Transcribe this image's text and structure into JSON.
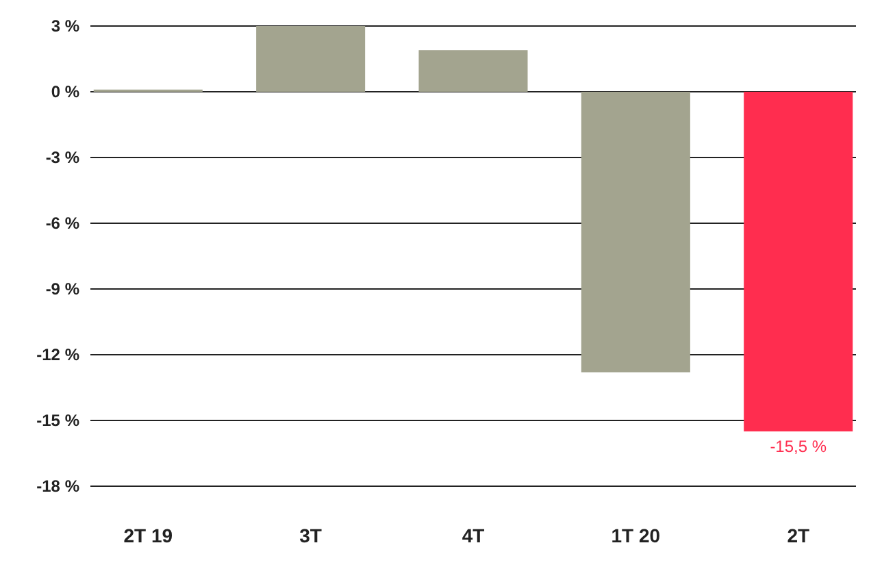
{
  "chart_data": {
    "type": "bar",
    "categories": [
      "2T 19",
      "3T",
      "4T",
      "1T 20",
      "2T"
    ],
    "values": [
      0.1,
      3,
      1.9,
      -12.8,
      -15.5
    ],
    "colors": [
      "#a3a48f",
      "#a3a48f",
      "#a3a48f",
      "#a3a48f",
      "#ff2d4f"
    ],
    "value_labels": [
      null,
      null,
      null,
      null,
      "-15,5 %"
    ],
    "ylim": [
      -18,
      3
    ],
    "yticks": [
      {
        "value": 3,
        "label": "3 %"
      },
      {
        "value": 0,
        "label": "0 %"
      },
      {
        "value": -3,
        "label": "-3 %"
      },
      {
        "value": -6,
        "label": "-6 %"
      },
      {
        "value": -9,
        "label": "-9 %"
      },
      {
        "value": -12,
        "label": "-12 %"
      },
      {
        "value": -15,
        "label": "-15 %"
      },
      {
        "value": -18,
        "label": "-18 %"
      }
    ],
    "grid": "y"
  }
}
